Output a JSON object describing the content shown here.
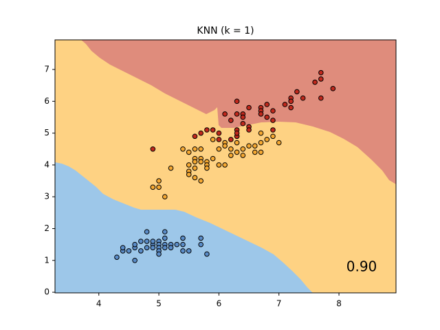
{
  "chart_data": {
    "type": "scatter",
    "title": "KNN (k = 1)",
    "annotation": "0.90",
    "xlim": [
      3.27,
      8.95
    ],
    "ylim": [
      -0.02,
      7.93
    ],
    "xticks": [
      4,
      5,
      6,
      7,
      8
    ],
    "yticks": [
      0,
      1,
      2,
      3,
      4,
      5,
      6,
      7
    ],
    "series": [
      {
        "color": "#5a8cc8",
        "x": [
          4.3,
          4.4,
          4.4,
          4.5,
          4.6,
          4.6,
          4.7,
          4.8,
          4.8,
          4.8,
          4.9,
          4.9,
          5.0,
          5.0,
          5.0,
          5.0,
          5.0,
          5.1,
          5.1,
          5.1,
          5.1,
          5.2,
          5.3,
          5.4,
          5.4,
          5.4,
          5.5,
          5.7,
          5.7,
          5.8,
          4.7,
          4.9,
          5.2,
          4.6
        ],
        "values": [
          1.1,
          1.3,
          1.4,
          1.3,
          1.4,
          1.0,
          1.6,
          1.6,
          1.9,
          1.4,
          1.5,
          1.4,
          1.6,
          1.5,
          1.4,
          1.3,
          1.2,
          1.9,
          1.7,
          1.5,
          1.4,
          1.5,
          1.5,
          1.7,
          1.5,
          1.3,
          1.3,
          1.7,
          1.5,
          1.2,
          1.3,
          1.6,
          1.4,
          1.5
        ]
      },
      {
        "color": "#f5a832",
        "x": [
          4.9,
          5.0,
          5.0,
          5.1,
          5.2,
          5.4,
          5.5,
          5.5,
          5.5,
          5.5,
          5.6,
          5.6,
          5.6,
          5.6,
          5.6,
          5.7,
          5.7,
          5.7,
          5.7,
          5.8,
          5.8,
          5.8,
          5.9,
          5.9,
          6.0,
          6.0,
          6.1,
          6.1,
          6.2,
          6.2,
          6.3,
          6.3,
          6.3,
          6.4,
          6.4,
          6.5,
          6.6,
          6.6,
          6.7,
          6.7,
          6.7,
          6.8,
          6.9,
          7.0,
          6.1
        ],
        "values": [
          3.3,
          3.3,
          3.5,
          3.0,
          3.9,
          4.5,
          4.0,
          3.8,
          3.7,
          4.4,
          4.5,
          4.2,
          4.1,
          3.9,
          3.6,
          4.5,
          4.2,
          4.1,
          3.5,
          4.1,
          4.0,
          3.9,
          4.8,
          4.2,
          4.5,
          4.0,
          4.0,
          4.7,
          4.5,
          4.3,
          4.7,
          4.4,
          4.9,
          4.5,
          4.3,
          4.6,
          4.6,
          4.4,
          4.7,
          4.4,
          5.0,
          4.8,
          4.9,
          4.7,
          4.6
        ]
      },
      {
        "color": "#c0281c",
        "x": [
          4.9,
          5.6,
          5.7,
          5.8,
          5.9,
          6.0,
          6.0,
          6.1,
          6.2,
          6.2,
          6.3,
          6.3,
          6.3,
          6.3,
          6.3,
          6.4,
          6.4,
          6.4,
          6.5,
          6.5,
          6.5,
          6.7,
          6.7,
          6.7,
          6.8,
          6.8,
          6.9,
          6.9,
          6.9,
          7.1,
          7.2,
          7.2,
          7.2,
          7.3,
          7.4,
          7.6,
          7.7,
          7.7,
          7.7,
          7.9
        ],
        "values": [
          4.5,
          4.9,
          5.0,
          5.1,
          5.1,
          4.8,
          5.0,
          5.6,
          5.4,
          4.8,
          6.0,
          5.6,
          5.1,
          4.9,
          5.0,
          5.3,
          5.6,
          5.5,
          5.8,
          5.2,
          5.1,
          5.8,
          5.7,
          5.6,
          5.9,
          5.5,
          5.7,
          5.4,
          5.1,
          5.9,
          6.1,
          6.0,
          5.8,
          6.3,
          6.1,
          6.6,
          6.9,
          6.7,
          6.1,
          6.4
        ]
      }
    ]
  }
}
